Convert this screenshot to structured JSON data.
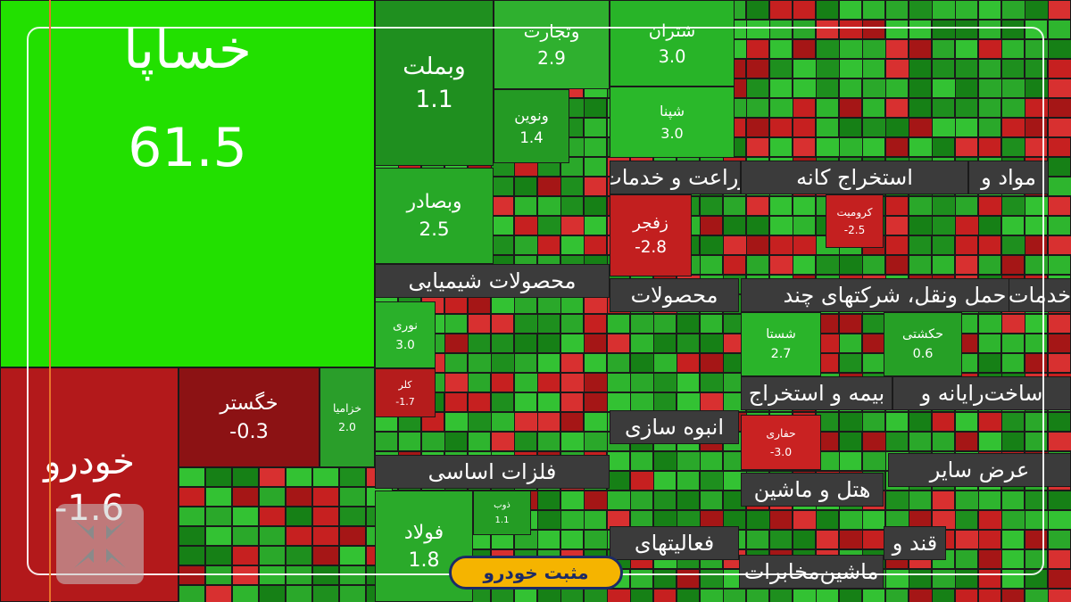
{
  "tiles": [
    {
      "label": "خساپا",
      "value": "61.5",
      "color": "#22e000"
    },
    {
      "label": "خودرو",
      "value": "1.6-",
      "color": "#b3191b"
    },
    {
      "label": "خگستر",
      "value": "0.3-",
      "color": "#8c1214"
    },
    {
      "label": "خزامیا",
      "value": "2.0",
      "color": "#2a9e2a"
    },
    {
      "label": "وبملت",
      "value": "1.1",
      "color": "#1f8f1f"
    },
    {
      "label": "وتجارت",
      "value": "2.9",
      "color": "#2fb02f"
    },
    {
      "label": "شتران",
      "value": "3.0",
      "color": "#28b428"
    },
    {
      "label": "ونوین",
      "value": "1.4",
      "color": "#249a24"
    },
    {
      "label": "شپنا",
      "value": "3.0",
      "color": "#2ab82a"
    },
    {
      "label": "وبصادر",
      "value": "2.5",
      "color": "#27a827"
    },
    {
      "label": "زفجر",
      "value": "2.8-",
      "color": "#c21f1f"
    },
    {
      "label": "کرومیت",
      "value": "2.5-",
      "color": "#c42020"
    },
    {
      "label": "نوری",
      "value": "3.0",
      "color": "#2ab02a"
    },
    {
      "label": "کلر",
      "value": "1.7-",
      "color": "#b51c1c"
    },
    {
      "label": "شستا",
      "value": "2.7",
      "color": "#2ab42a"
    },
    {
      "label": "حکشتی",
      "value": "0.6",
      "color": "#26a026"
    },
    {
      "label": "حفاری",
      "value": "3.0-",
      "color": "#c92222"
    },
    {
      "label": "فولاد",
      "value": "1.8",
      "color": "#2aaa2a"
    },
    {
      "label": "ذوب",
      "value": "1.1",
      "color": "#249c24"
    }
  ],
  "sectors": [
    "مواد و",
    "استخراج کانه",
    "زراعت و خدمات",
    "محصولات شیمیایی",
    "محصولات",
    "حمل ونقل، شرکتهای چند",
    "خدمات",
    "بیمه و استخراج",
    "ساخت‌رایانه و",
    "انبوه سازی",
    "فلزات اساسی",
    "هتل و ماشین",
    "عرض سایر",
    "فعالیتهای",
    "قند و",
    "ماشین‌مخابرات"
  ],
  "logo": "مثبت خودرو"
}
